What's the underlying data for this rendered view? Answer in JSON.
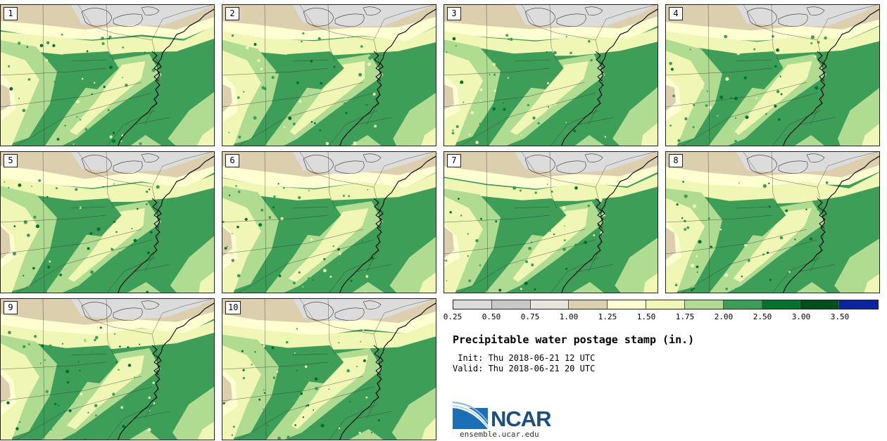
{
  "panels": [
    {
      "member": "1"
    },
    {
      "member": "2"
    },
    {
      "member": "3"
    },
    {
      "member": "4"
    },
    {
      "member": "5"
    },
    {
      "member": "6"
    },
    {
      "member": "7"
    },
    {
      "member": "8"
    },
    {
      "member": "9"
    },
    {
      "member": "10"
    }
  ],
  "colorbar": {
    "ticks": [
      "0.25",
      "0.50",
      "0.75",
      "1.00",
      "1.25",
      "1.50",
      "1.75",
      "2.00",
      "2.50",
      "3.00",
      "3.50"
    ],
    "colors": [
      "#dcdcdc",
      "#c8c8c8",
      "#e8e6dc",
      "#dccfae",
      "#ffffd2",
      "#f0f7b4",
      "#afdc91",
      "#3d9e57",
      "#00742b",
      "#00501e",
      "#0a23a0"
    ]
  },
  "title": "Precipitable water postage stamp (in.)",
  "init": " Init: Thu 2018-06-21 12 UTC",
  "valid": "Valid: Thu 2018-06-21 20 UTC",
  "logo": {
    "name": "NCAR",
    "url": "ensemble.ucar.edu"
  },
  "colors": {
    "high_pw": "#3d9e57",
    "med_pw": "#afdc91",
    "low_pw": "#f0f7b4",
    "very_low_pw": "#ffffd2",
    "dry_tan": "#dccfae",
    "dry_gray": "#dcdcdc",
    "ncar_blue": "#1b4f82"
  }
}
